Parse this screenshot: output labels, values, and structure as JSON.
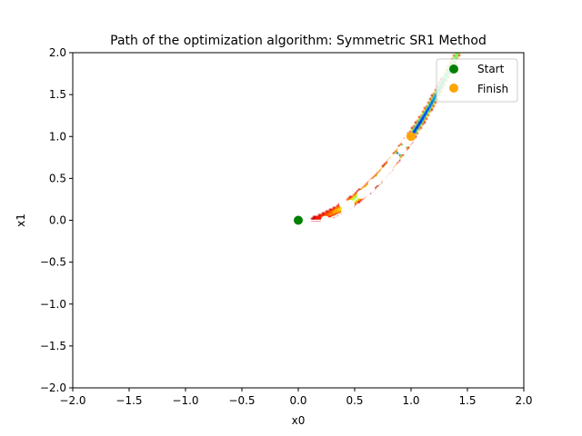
{
  "chart_data": {
    "type": "contour-with-path",
    "title": "Path of the optimization algorithm: Symmetric SR1 Method",
    "xlabel": "x0",
    "ylabel": "x1",
    "xlim": [
      -2.0,
      2.0
    ],
    "ylim": [
      -2.0,
      2.0
    ],
    "x_ticks": [
      "−2.0",
      "−1.5",
      "−1.0",
      "−0.5",
      "0.0",
      "0.5",
      "1.0",
      "1.5",
      "2.0"
    ],
    "y_ticks": [
      "−2.0",
      "−1.5",
      "−1.0",
      "−0.5",
      "0.0",
      "0.5",
      "1.0",
      "1.5",
      "2.0"
    ],
    "grid": false,
    "legend": {
      "placement": "top-right",
      "entries": [
        "Start",
        "Finish"
      ]
    },
    "contour": {
      "function": "rosenbrock",
      "levels": [
        0,
        0.0025,
        0.01,
        0.0225,
        0.04,
        0.0625,
        0.09,
        0.1225,
        0.16,
        0.2025,
        0.25,
        0.3025,
        0.36,
        0.4225,
        0.49,
        0.5625,
        0.64,
        0.7225,
        0.81
      ],
      "colors": [
        "#00007f",
        "#0000c3",
        "#0000ff",
        "#0024ff",
        "#0058ff",
        "#008cff",
        "#00c4ff",
        "#22ffd4",
        "#4dffaa",
        "#7dff7a",
        "#aaff4d",
        "#d4ff22",
        "#ffe500",
        "#ffb100",
        "#ff7e00",
        "#ff4800",
        "#ff1600",
        "#c40000",
        "#8b0000"
      ]
    },
    "path": {
      "color": "#ffffff",
      "points": [
        [
          0.0,
          0.0
        ],
        [
          0.24,
          0.0
        ],
        [
          0.42,
          0.11
        ],
        [
          0.4,
          0.2
        ],
        [
          0.46,
          0.19
        ],
        [
          0.56,
          0.31
        ],
        [
          0.6,
          0.34
        ],
        [
          0.64,
          0.38
        ],
        [
          0.66,
          0.44
        ],
        [
          0.7,
          0.47
        ],
        [
          0.74,
          0.53
        ],
        [
          0.77,
          0.58
        ],
        [
          0.8,
          0.62
        ],
        [
          0.83,
          0.69
        ],
        [
          0.86,
          0.74
        ],
        [
          0.92,
          0.84
        ],
        [
          0.96,
          0.93
        ],
        [
          0.98,
          0.96
        ],
        [
          1.0,
          1.0
        ]
      ]
    },
    "start": {
      "x": 0.0,
      "y": 0.0,
      "label": "Start",
      "color": "#008000"
    },
    "finish": {
      "x": 1.0,
      "y": 1.0,
      "label": "Finish",
      "color": "#ffa500"
    }
  }
}
